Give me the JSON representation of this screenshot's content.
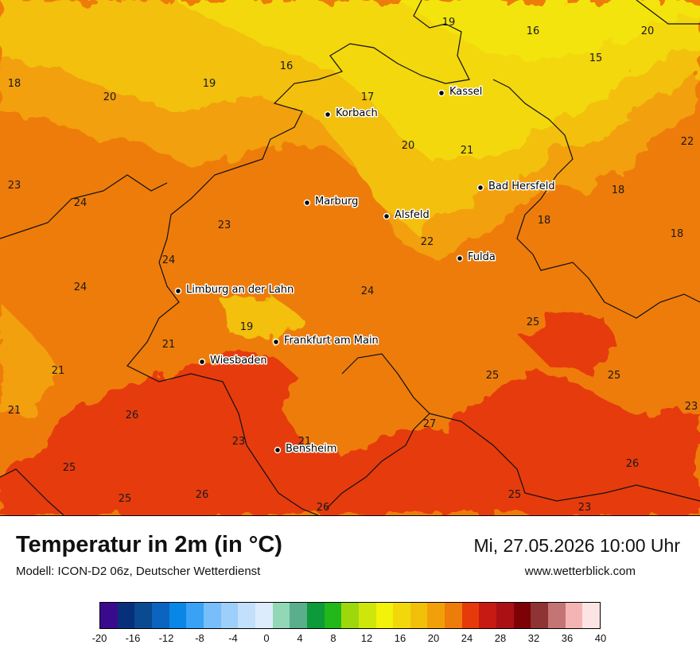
{
  "map": {
    "temperature_labels": [
      {
        "value": "19",
        "col": 564,
        "row": 27
      },
      {
        "value": "16",
        "col": 670,
        "row": 38
      },
      {
        "value": "20",
        "col": 814,
        "row": 38
      },
      {
        "value": "15",
        "col": 749,
        "row": 72
      },
      {
        "value": "16",
        "col": 360,
        "row": 82
      },
      {
        "value": "18",
        "col": 18,
        "row": 104
      },
      {
        "value": "19",
        "col": 263,
        "row": 104
      },
      {
        "value": "20",
        "col": 138,
        "row": 121
      },
      {
        "value": "17",
        "col": 462,
        "row": 121
      },
      {
        "value": "20",
        "col": 513,
        "row": 182
      },
      {
        "value": "21",
        "col": 587,
        "row": 188
      },
      {
        "value": "22",
        "col": 864,
        "row": 177
      },
      {
        "value": "23",
        "col": 18,
        "row": 232
      },
      {
        "value": "18",
        "col": 777,
        "row": 238
      },
      {
        "value": "24",
        "col": 101,
        "row": 254
      },
      {
        "value": "18",
        "col": 684,
        "row": 276
      },
      {
        "value": "23",
        "col": 282,
        "row": 282
      },
      {
        "value": "18",
        "col": 851,
        "row": 293
      },
      {
        "value": "22",
        "col": 537,
        "row": 303
      },
      {
        "value": "24",
        "col": 212,
        "row": 326
      },
      {
        "value": "24",
        "col": 101,
        "row": 360
      },
      {
        "value": "24",
        "col": 462,
        "row": 365
      },
      {
        "value": "25",
        "col": 670,
        "row": 404
      },
      {
        "value": "19",
        "col": 310,
        "row": 410
      },
      {
        "value": "21",
        "col": 212,
        "row": 432
      },
      {
        "value": "21",
        "col": 73,
        "row": 465
      },
      {
        "value": "25",
        "col": 619,
        "row": 471
      },
      {
        "value": "25",
        "col": 772,
        "row": 471
      },
      {
        "value": "21",
        "col": 18,
        "row": 515
      },
      {
        "value": "23",
        "col": 869,
        "row": 510
      },
      {
        "value": "26",
        "col": 166,
        "row": 521
      },
      {
        "value": "27",
        "col": 540,
        "row": 532
      },
      {
        "value": "23",
        "col": 300,
        "row": 554
      },
      {
        "value": "21",
        "col": 383,
        "row": 554
      },
      {
        "value": "26",
        "col": 795,
        "row": 582
      },
      {
        "value": "25",
        "col": 87,
        "row": 587
      },
      {
        "value": "25",
        "col": 157,
        "row": 626
      },
      {
        "value": "26",
        "col": 254,
        "row": 621
      },
      {
        "value": "25",
        "col": 647,
        "row": 621
      },
      {
        "value": "26",
        "col": 406,
        "row": 637
      },
      {
        "value": "23",
        "col": 735,
        "row": 637
      }
    ],
    "cities": [
      {
        "name": "Kassel",
        "col": 555,
        "row": 117
      },
      {
        "name": "Korbach",
        "col": 412,
        "row": 144
      },
      {
        "name": "Bad Hersfeld",
        "col": 604,
        "row": 236
      },
      {
        "name": "Marburg",
        "col": 386,
        "row": 255
      },
      {
        "name": "Alsfeld",
        "col": 486,
        "row": 272
      },
      {
        "name": "Fulda",
        "col": 578,
        "row": 325
      },
      {
        "name": "Limburg an der Lahn",
        "col": 224,
        "row": 366
      },
      {
        "name": "Frankfurt am Main",
        "col": 347,
        "row": 430
      },
      {
        "name": "Wiesbaden",
        "col": 254,
        "row": 455
      },
      {
        "name": "Bensheim",
        "col": 349,
        "row": 566
      }
    ]
  },
  "footer": {
    "title": "Temperatur in 2m (in °C)",
    "model": "Modell: ICON-D2 06z, Deutscher Wetterdienst",
    "datetime": "Mi, 27.05.2026 10:00 Uhr",
    "website": "www.wetterblick.com"
  },
  "legend": {
    "colors": [
      "#3a0a8c",
      "#08307a",
      "#0a4a90",
      "#0a64c0",
      "#0a86e6",
      "#3aa2f4",
      "#78bef8",
      "#9ccffa",
      "#c2e0fb",
      "#dcecfb",
      "#92d8b6",
      "#5aae8c",
      "#0c9a3a",
      "#22b81a",
      "#9cd80c",
      "#cee60a",
      "#f2f20a",
      "#f2d80a",
      "#f2c00a",
      "#f2a00a",
      "#ee7c0a",
      "#e63a0a",
      "#c61a12",
      "#aa1016",
      "#7c0206",
      "#8e3434",
      "#c47474",
      "#f4b4b4",
      "#fce4e4"
    ],
    "ticks": [
      "-20",
      "-16",
      "-12",
      "-8",
      "-4",
      "0",
      "4",
      "8",
      "12",
      "16",
      "20",
      "24",
      "28",
      "32",
      "36",
      "40"
    ]
  },
  "colors": {
    "t15": "#f4e40a",
    "t17": "#f2d80a",
    "t19": "#f2c00a",
    "t21": "#f2a00a",
    "t23": "#ee7c0a",
    "t25": "#e63a0a"
  }
}
